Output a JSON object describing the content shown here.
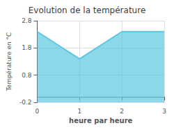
{
  "chart_data": {
    "type": "area",
    "title": "Evolution de la température",
    "xlabel": "heure par heure",
    "ylabel": "Température en °C",
    "x": [
      0,
      1,
      2,
      3
    ],
    "values": [
      2.4,
      1.4,
      2.4,
      2.4
    ],
    "color": "#5bc8e0",
    "xlim": [
      0,
      3
    ],
    "xticks": [
      0,
      1,
      2,
      3
    ],
    "ylim": [
      -0.2,
      2.8
    ],
    "yticks": [
      -0.2,
      0.8,
      1.8,
      2.8
    ],
    "grid": true
  }
}
